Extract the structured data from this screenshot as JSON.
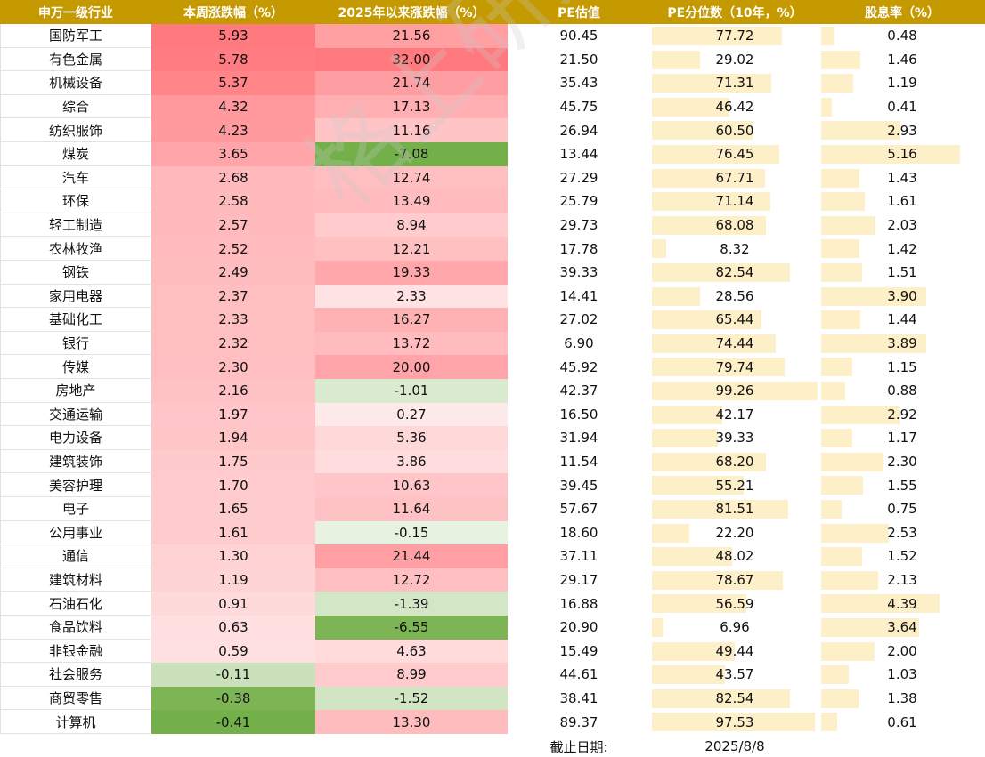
{
  "chart_data": {
    "type": "table",
    "columns": [
      "申万一级行业",
      "本周涨跌幅（%）",
      "2025年以来涨跌幅（%）",
      "PE估值",
      "PE分位数（10年，%）",
      "股息率（%）"
    ],
    "rows": [
      [
        "国防军工",
        "5.93",
        "21.56",
        "90.45",
        "77.72",
        "0.48"
      ],
      [
        "有色金属",
        "5.78",
        "32.00",
        "21.50",
        "29.02",
        "1.46"
      ],
      [
        "机械设备",
        "5.37",
        "21.74",
        "35.43",
        "71.31",
        "1.19"
      ],
      [
        "综合",
        "4.32",
        "17.13",
        "45.75",
        "46.42",
        "0.41"
      ],
      [
        "纺织服饰",
        "4.23",
        "11.16",
        "26.94",
        "60.50",
        "2.93"
      ],
      [
        "煤炭",
        "3.65",
        "-7.08",
        "13.44",
        "76.45",
        "5.16"
      ],
      [
        "汽车",
        "2.68",
        "12.74",
        "27.29",
        "67.71",
        "1.43"
      ],
      [
        "环保",
        "2.58",
        "13.49",
        "25.79",
        "71.14",
        "1.61"
      ],
      [
        "轻工制造",
        "2.57",
        "8.94",
        "29.73",
        "68.08",
        "2.03"
      ],
      [
        "农林牧渔",
        "2.52",
        "12.21",
        "17.78",
        "8.32",
        "1.42"
      ],
      [
        "钢铁",
        "2.49",
        "19.33",
        "39.33",
        "82.54",
        "1.51"
      ],
      [
        "家用电器",
        "2.37",
        "2.33",
        "14.41",
        "28.56",
        "3.90"
      ],
      [
        "基础化工",
        "2.33",
        "16.27",
        "27.02",
        "65.44",
        "1.44"
      ],
      [
        "银行",
        "2.32",
        "13.72",
        "6.90",
        "74.44",
        "3.89"
      ],
      [
        "传媒",
        "2.30",
        "20.00",
        "45.92",
        "79.74",
        "1.15"
      ],
      [
        "房地产",
        "2.16",
        "-1.01",
        "42.37",
        "99.26",
        "0.88"
      ],
      [
        "交通运输",
        "1.97",
        "0.27",
        "16.50",
        "42.17",
        "2.92"
      ],
      [
        "电力设备",
        "1.94",
        "5.36",
        "31.94",
        "39.33",
        "1.17"
      ],
      [
        "建筑装饰",
        "1.75",
        "3.86",
        "11.54",
        "68.20",
        "2.30"
      ],
      [
        "美容护理",
        "1.70",
        "10.63",
        "39.45",
        "55.21",
        "1.55"
      ],
      [
        "电子",
        "1.65",
        "11.64",
        "57.67",
        "81.51",
        "0.75"
      ],
      [
        "公用事业",
        "1.61",
        "-0.15",
        "18.60",
        "22.20",
        "2.53"
      ],
      [
        "通信",
        "1.30",
        "21.44",
        "37.11",
        "48.02",
        "1.52"
      ],
      [
        "建筑材料",
        "1.19",
        "12.72",
        "29.17",
        "78.67",
        "2.13"
      ],
      [
        "石油石化",
        "0.91",
        "-1.39",
        "16.88",
        "56.59",
        "4.39"
      ],
      [
        "食品饮料",
        "0.63",
        "-6.55",
        "20.90",
        "6.96",
        "3.64"
      ],
      [
        "非银金融",
        "0.59",
        "4.63",
        "15.49",
        "49.44",
        "2.00"
      ],
      [
        "社会服务",
        "-0.11",
        "8.99",
        "44.61",
        "43.57",
        "1.03"
      ],
      [
        "商贸零售",
        "-0.38",
        "-1.52",
        "38.41",
        "82.54",
        "1.38"
      ],
      [
        "计算机",
        "-0.41",
        "13.30",
        "89.37",
        "97.53",
        "0.61"
      ]
    ],
    "footer": {
      "label": "截止日期:",
      "date": "2025/8/8"
    },
    "watermark": "格上研究",
    "colors": {
      "header": "#c49a00",
      "pos": "#ff7a7f",
      "neg": "#74b04a",
      "bar": "#fdefc8"
    }
  }
}
